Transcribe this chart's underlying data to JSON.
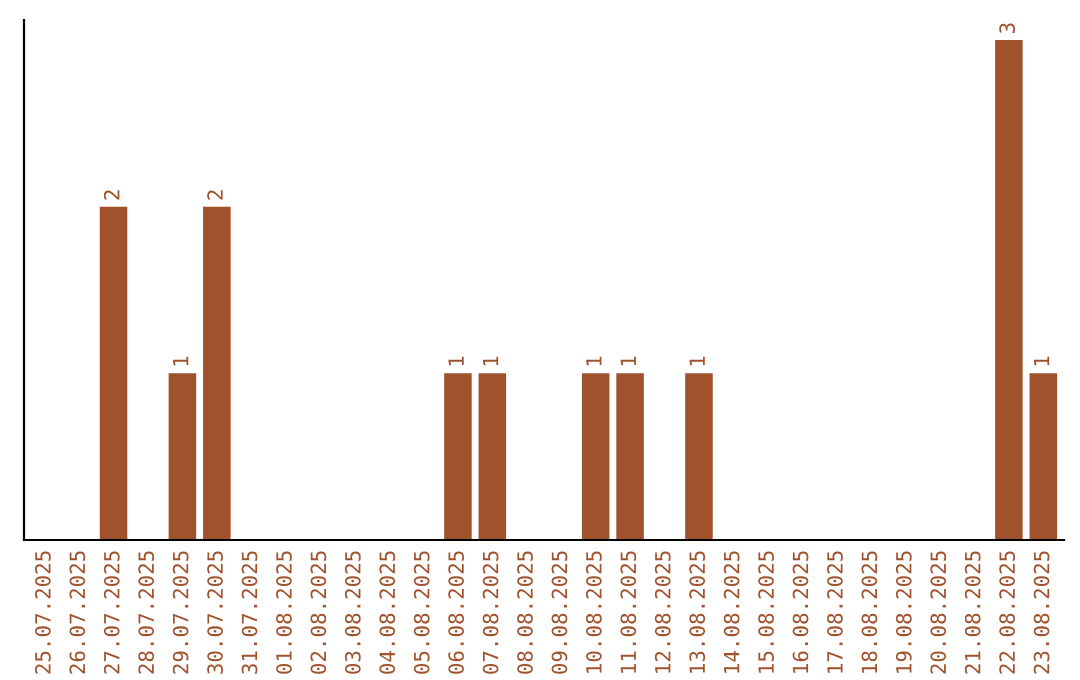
{
  "chart_data": {
    "type": "bar",
    "categories": [
      "25.07.2025",
      "26.07.2025",
      "27.07.2025",
      "28.07.2025",
      "29.07.2025",
      "30.07.2025",
      "31.07.2025",
      "01.08.2025",
      "02.08.2025",
      "03.08.2025",
      "04.08.2025",
      "05.08.2025",
      "06.08.2025",
      "07.08.2025",
      "08.08.2025",
      "09.08.2025",
      "10.08.2025",
      "11.08.2025",
      "12.08.2025",
      "13.08.2025",
      "14.08.2025",
      "15.08.2025",
      "16.08.2025",
      "17.08.2025",
      "18.08.2025",
      "19.08.2025",
      "20.08.2025",
      "21.08.2025",
      "22.08.2025",
      "23.08.2025"
    ],
    "values": [
      0,
      0,
      2,
      0,
      1,
      2,
      0,
      0,
      0,
      0,
      0,
      0,
      1,
      1,
      0,
      0,
      1,
      1,
      0,
      1,
      0,
      0,
      0,
      0,
      0,
      0,
      0,
      0,
      3,
      1
    ],
    "value_labels": [
      null,
      null,
      "2",
      null,
      "1",
      "2",
      null,
      null,
      null,
      null,
      null,
      null,
      "1",
      "1",
      null,
      null,
      "1",
      "1",
      null,
      "1",
      null,
      null,
      null,
      null,
      null,
      null,
      null,
      null,
      "3",
      "1"
    ],
    "color": "#a0522d",
    "tick_labels": "x",
    "grid": false,
    "legend": false
  }
}
